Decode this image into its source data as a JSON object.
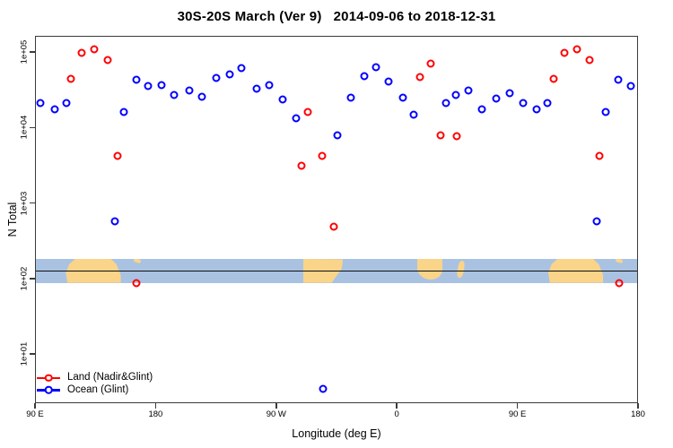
{
  "chart_data": {
    "type": "scatter",
    "title": "30S-20S March (Ver 9)   2014-09-06 to 2018-12-31",
    "xlabel": "Longitude (deg E)",
    "ylabel": "N Total",
    "y_scale": "log",
    "ylim": [
      2,
      170000
    ],
    "x_axis_span_degrees": [
      90,
      540
    ],
    "grid": false,
    "x_ticks": [
      {
        "axis_deg": 90,
        "label": "90 E"
      },
      {
        "axis_deg": 180,
        "label": "180"
      },
      {
        "axis_deg": 270,
        "label": "90 W"
      },
      {
        "axis_deg": 360,
        "label": "0"
      },
      {
        "axis_deg": 450,
        "label": "90 E"
      },
      {
        "axis_deg": 540,
        "label": "180"
      }
    ],
    "y_ticks": [
      {
        "value": 100000,
        "label": "1e+05"
      },
      {
        "value": 10000,
        "label": "1e+04"
      },
      {
        "value": 1000,
        "label": "1e+03"
      },
      {
        "value": 100,
        "label": "1e+02"
      },
      {
        "value": 10,
        "label": "1e+01"
      }
    ],
    "series": [
      {
        "name": "Land (Nadir&Glint)",
        "color": "#ff0000",
        "marker": "open-circle",
        "points": [
          {
            "lon": 117,
            "n": 44000
          },
          {
            "lon": 125,
            "n": 98000
          },
          {
            "lon": 134.5,
            "n": 110000
          },
          {
            "lon": 144,
            "n": 78000
          },
          {
            "lon": 151.5,
            "n": 4250
          },
          {
            "lon": 166,
            "n": 88
          },
          {
            "lon": 289,
            "n": 3100
          },
          {
            "lon": 293.5,
            "n": 16000
          },
          {
            "lon": 304.5,
            "n": 4250
          },
          {
            "lon": 313,
            "n": 490
          },
          {
            "lon": 377,
            "n": 46500
          },
          {
            "lon": 385,
            "n": 70000
          },
          {
            "lon": 392.5,
            "n": 7900
          },
          {
            "lon": 405,
            "n": 7700
          },
          {
            "lon": 477,
            "n": 44000
          },
          {
            "lon": 485,
            "n": 98000
          },
          {
            "lon": 494.5,
            "n": 110000
          },
          {
            "lon": 504,
            "n": 78000
          },
          {
            "lon": 511.5,
            "n": 4250
          },
          {
            "lon": 526,
            "n": 88
          }
        ]
      },
      {
        "name": "Ocean (Glint)",
        "color": "#0000ff",
        "marker": "open-circle",
        "points": [
          {
            "lon": 94,
            "n": 21000
          },
          {
            "lon": 104.5,
            "n": 17400
          },
          {
            "lon": 113.5,
            "n": 21000
          },
          {
            "lon": 149.5,
            "n": 580
          },
          {
            "lon": 156,
            "n": 16000
          },
          {
            "lon": 165.5,
            "n": 43000
          },
          {
            "lon": 174.5,
            "n": 35500
          },
          {
            "lon": 184.5,
            "n": 36500
          },
          {
            "lon": 194,
            "n": 27000
          },
          {
            "lon": 205,
            "n": 31000
          },
          {
            "lon": 214.5,
            "n": 25500
          },
          {
            "lon": 225.5,
            "n": 45000
          },
          {
            "lon": 235.5,
            "n": 50500
          },
          {
            "lon": 244,
            "n": 61000
          },
          {
            "lon": 255.5,
            "n": 32500
          },
          {
            "lon": 265,
            "n": 36500
          },
          {
            "lon": 275,
            "n": 23500
          },
          {
            "lon": 285,
            "n": 13200
          },
          {
            "lon": 305,
            "n": 3.5
          },
          {
            "lon": 315.5,
            "n": 7900
          },
          {
            "lon": 325.5,
            "n": 25000
          },
          {
            "lon": 335.5,
            "n": 48000
          },
          {
            "lon": 344.5,
            "n": 63000
          },
          {
            "lon": 354,
            "n": 40500
          },
          {
            "lon": 364.5,
            "n": 25000
          },
          {
            "lon": 372.5,
            "n": 14700
          },
          {
            "lon": 396.5,
            "n": 21000
          },
          {
            "lon": 404,
            "n": 27000
          },
          {
            "lon": 413.5,
            "n": 31000
          },
          {
            "lon": 423.5,
            "n": 17400
          },
          {
            "lon": 434,
            "n": 24000
          },
          {
            "lon": 444.5,
            "n": 28500
          },
          {
            "lon": 454,
            "n": 21000
          },
          {
            "lon": 464.5,
            "n": 17400
          },
          {
            "lon": 472.5,
            "n": 21000
          },
          {
            "lon": 509.5,
            "n": 580
          },
          {
            "lon": 516,
            "n": 16000
          },
          {
            "lon": 525.5,
            "n": 43000
          },
          {
            "lon": 534.5,
            "n": 35500
          }
        ]
      }
    ],
    "map_band": {
      "description": "World map strip of the 30S-20S latitude band",
      "top_value": 182,
      "bottom_value": 88,
      "line_value": 129,
      "ocean_color": "#a9c2e2",
      "land_color": "#fad489",
      "line_color": "#111111",
      "land_patches": [
        {
          "name": "australia",
          "from": 113,
          "to": 154
        },
        {
          "name": "new-caledonia",
          "from": 163.5,
          "to": 169
        },
        {
          "name": "south-america",
          "from": 290,
          "to": 320
        },
        {
          "name": "africa",
          "from": 375.5,
          "to": 394
        },
        {
          "name": "madagascar",
          "from": 405.5,
          "to": 410
        },
        {
          "name": "australia-repeat",
          "from": 473,
          "to": 514
        },
        {
          "name": "new-caledonia-repeat",
          "from": 523.5,
          "to": 529
        }
      ]
    },
    "legend": {
      "position": "bottom-left",
      "entries": [
        {
          "label": "Land (Nadir&Glint)",
          "color": "#ff0000"
        },
        {
          "label": "Ocean (Glint)",
          "color": "#0000ff"
        }
      ]
    }
  }
}
